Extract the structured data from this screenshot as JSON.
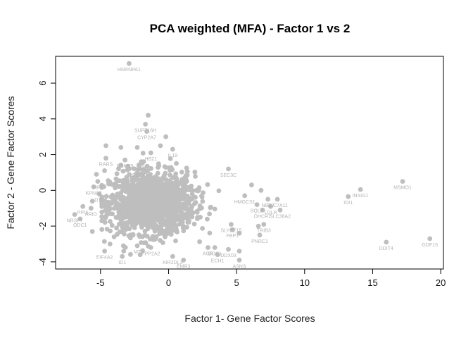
{
  "chart_data": {
    "type": "scatter",
    "title": "PCA weighted (MFA) - Factor 1 vs 2",
    "xlabel": "Factor 1- Gene Factor Scores",
    "ylabel": "Factor 2 - Gene Factor Scores",
    "xlim": [
      -8.3,
      20.2
    ],
    "ylim": [
      -4.4,
      7.5
    ],
    "xticks": [
      -5,
      0,
      5,
      10,
      15,
      20
    ],
    "yticks": [
      -4,
      -2,
      0,
      2,
      4,
      6
    ],
    "point_color": "#bebebe",
    "label_color": "#b3b3b3",
    "grid": false,
    "legend": "none",
    "points": [
      {
        "x": -2.9,
        "y": 7.1,
        "label": "HNRNPA1"
      },
      {
        "x": -1.5,
        "y": 4.2,
        "label": ""
      },
      {
        "x": -1.7,
        "y": 3.7,
        "label": "SUPT16H"
      },
      {
        "x": -1.6,
        "y": 3.3,
        "label": "CYP2A7"
      },
      {
        "x": -0.2,
        "y": 3.0,
        "label": ""
      },
      {
        "x": -0.6,
        "y": 2.5,
        "label": ""
      },
      {
        "x": 0.3,
        "y": 2.3,
        "label": "IL19"
      },
      {
        "x": -1.3,
        "y": 2.1,
        "label": "HB21"
      },
      {
        "x": -4.6,
        "y": 2.5,
        "label": ""
      },
      {
        "x": -3.5,
        "y": 2.4,
        "label": ""
      },
      {
        "x": -2.3,
        "y": 2.4,
        "label": ""
      },
      {
        "x": -4.6,
        "y": 1.8,
        "label": "RARS"
      },
      {
        "x": -3.2,
        "y": 1.7,
        "label": "RBM39"
      },
      {
        "x": -2.0,
        "y": 1.6,
        "label": "UCE"
      },
      {
        "x": -2.1,
        "y": 1.2,
        "label": "CDC42"
      },
      {
        "x": -4.7,
        "y": 1.1,
        "label": ""
      },
      {
        "x": -5.3,
        "y": 0.9,
        "label": ""
      },
      {
        "x": -5.2,
        "y": 0.5,
        "label": "VIP7"
      },
      {
        "x": -5.5,
        "y": 0.2,
        "label": "KPNA2"
      },
      {
        "x": -5.1,
        "y": -0.2,
        "label": "DTL"
      },
      {
        "x": -5.6,
        "y": -0.6,
        "label": ""
      },
      {
        "x": -6.3,
        "y": -0.9,
        "label": "PPIA"
      },
      {
        "x": -5.7,
        "y": -1.0,
        "label": "ARID"
      },
      {
        "x": -6.9,
        "y": -1.35,
        "label": "NRSF7"
      },
      {
        "x": -6.5,
        "y": -1.6,
        "label": "ODC1"
      },
      {
        "x": -5.6,
        "y": -2.3,
        "label": ""
      },
      {
        "x": -4.0,
        "y": -2.6,
        "label": ""
      },
      {
        "x": -4.3,
        "y": -3.0,
        "label": ""
      },
      {
        "x": -4.7,
        "y": -3.4,
        "label": "EIF4A2"
      },
      {
        "x": -3.3,
        "y": -3.4,
        "label": ""
      },
      {
        "x": -3.4,
        "y": -3.7,
        "label": "ID1"
      },
      {
        "x": -2.3,
        "y": -3.1,
        "label": "MT"
      },
      {
        "x": -1.3,
        "y": -3.2,
        "label": "PPP2A2"
      },
      {
        "x": 0.3,
        "y": -3.7,
        "label": "KIR2DL3"
      },
      {
        "x": 1.1,
        "y": -3.9,
        "label": "EMR3"
      },
      {
        "x": 2.9,
        "y": -3.2,
        "label": "AGR"
      },
      {
        "x": 3.4,
        "y": -3.2,
        "label": "ODC1"
      },
      {
        "x": 4.4,
        "y": -3.3,
        "label": "DDX03"
      },
      {
        "x": 3.6,
        "y": -3.6,
        "label": "ECH1"
      },
      {
        "x": 5.2,
        "y": -3.4,
        "label": ""
      },
      {
        "x": 5.2,
        "y": -3.9,
        "label": "ASNS"
      },
      {
        "x": 5.2,
        "y": -2.4,
        "label": ""
      },
      {
        "x": 4.6,
        "y": -1.9,
        "label": "SLYEE15"
      },
      {
        "x": 4.7,
        "y": -2.2,
        "label": "FBP1"
      },
      {
        "x": 6.6,
        "y": -2.0,
        "label": ""
      },
      {
        "x": 6.7,
        "y": -2.5,
        "label": "PNRC1"
      },
      {
        "x": 7.0,
        "y": -1.9,
        "label": "TRIB3"
      },
      {
        "x": 4.4,
        "y": 1.2,
        "label": "SEC3C"
      },
      {
        "x": 6.1,
        "y": 0.3,
        "label": ""
      },
      {
        "x": 5.6,
        "y": -0.3,
        "label": "HMGCS1"
      },
      {
        "x": 6.8,
        "y": 0.0,
        "label": ""
      },
      {
        "x": 7.3,
        "y": -0.5,
        "label": "NEK7"
      },
      {
        "x": 6.5,
        "y": -0.8,
        "label": "SQLE"
      },
      {
        "x": 7.5,
        "y": -0.9,
        "label": "LDLR"
      },
      {
        "x": 8.0,
        "y": -0.5,
        "label": "SLC7A11"
      },
      {
        "x": 8.2,
        "y": -1.1,
        "label": "SLC38A2"
      },
      {
        "x": 6.9,
        "y": -1.1,
        "label": "DHCR7"
      },
      {
        "x": 13.2,
        "y": -0.35,
        "label": "IDI1"
      },
      {
        "x": 14.1,
        "y": 0.05,
        "label": "INSIG1"
      },
      {
        "x": 17.2,
        "y": 0.5,
        "label": "MSMO1"
      },
      {
        "x": 16.0,
        "y": -2.9,
        "label": "DDIT4"
      },
      {
        "x": 19.2,
        "y": -2.7,
        "label": "GDF15"
      }
    ]
  }
}
